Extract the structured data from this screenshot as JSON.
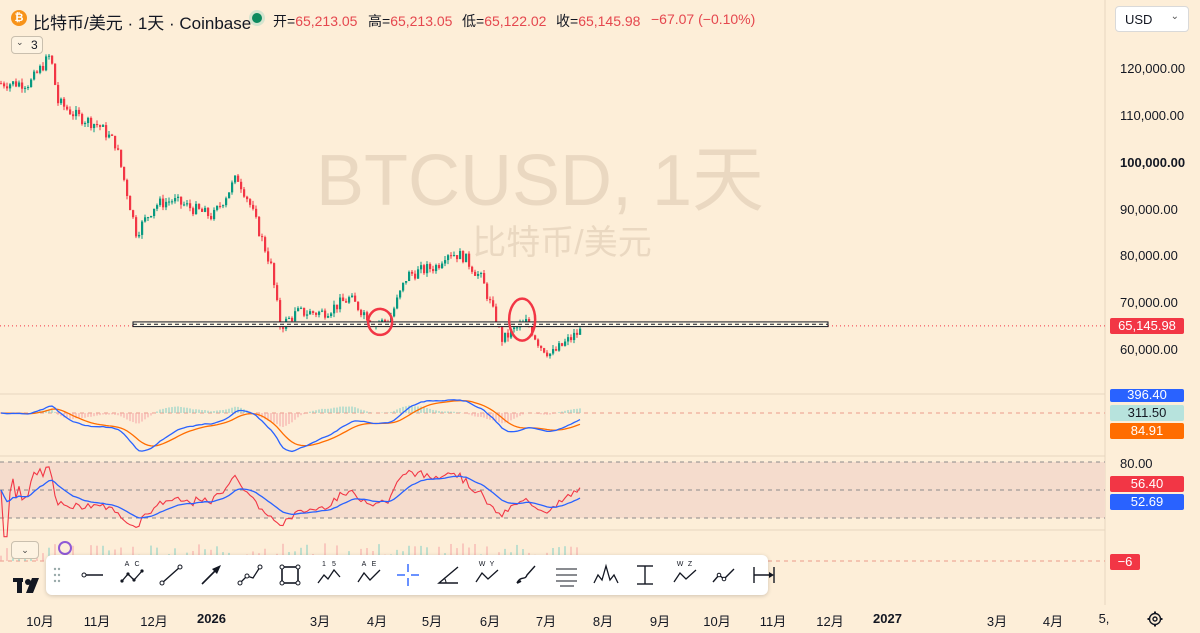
{
  "header": {
    "coin_glyph": "₿",
    "symbol_title": "比特币/美元 · 1天 · Coinbase",
    "ohlc": [
      {
        "label": "开=",
        "value": "65,213.05"
      },
      {
        "label": "高=",
        "value": "65,213.05"
      },
      {
        "label": "低=",
        "value": "65,122.02"
      },
      {
        "label": "收=",
        "value": "65,145.98"
      }
    ],
    "change": "−67.07 (−0.10%)",
    "currency": "USD",
    "indicator_count": "3"
  },
  "watermark": {
    "line1": "BTCUSD, 1天",
    "line2": "比特币/美元"
  },
  "colors": {
    "background": "#fdeed8",
    "up": "#089981",
    "down": "#f23645",
    "macd_line": "#2962ff",
    "signal_line": "#ff6d00",
    "rsi_line": "#f23645",
    "rsi_ma": "#2962ff",
    "price_tag": "#f23645"
  },
  "price_axis": [
    "120,000.00",
    "110,000.00",
    "100,000.00",
    "90,000.00",
    "80,000.00",
    "70,000.00",
    "60,000.00"
  ],
  "macd_axis": {
    "top": "396.40",
    "hist": "311.50",
    "signal": "84.91"
  },
  "rsi_axis": {
    "upper": "80.00",
    "rsi": "56.40",
    "ma": "52.69"
  },
  "volume_axis": {
    "value": "−6"
  },
  "current_price": "65,145.98",
  "time_axis": [
    "10月",
    "11月",
    "12月",
    "2026",
    "3月",
    "4月",
    "5月",
    "6月",
    "7月",
    "8月",
    "9月",
    "10月",
    "11月",
    "12月",
    "2027",
    "3月",
    "4月",
    "5,"
  ],
  "toolbar_tools": [
    {
      "name": "horizontal-ray-tool",
      "glyph": ""
    },
    {
      "name": "abc-pattern-tool",
      "glyph": "A C"
    },
    {
      "name": "trend-line-tool",
      "glyph": ""
    },
    {
      "name": "arrow-tool",
      "glyph": ""
    },
    {
      "name": "path-tool",
      "glyph": ""
    },
    {
      "name": "rectangle-tool",
      "glyph": ""
    },
    {
      "name": "elliott-wave-tool",
      "glyph": "1 5"
    },
    {
      "name": "abcd-pattern-tool",
      "glyph": "A E"
    },
    {
      "name": "crosshair-tool",
      "glyph": ""
    },
    {
      "name": "angle-tool",
      "glyph": ""
    },
    {
      "name": "wxy-pattern-tool",
      "glyph": "W Y"
    },
    {
      "name": "brush-tool",
      "glyph": ""
    },
    {
      "name": "fib-channel-tool",
      "glyph": ""
    },
    {
      "name": "head-shoulders-tool",
      "glyph": ""
    },
    {
      "name": "anchored-tool",
      "glyph": ""
    },
    {
      "name": "wxyz-pattern-tool",
      "glyph": "W Z"
    },
    {
      "name": "forecast-tool",
      "glyph": ""
    },
    {
      "name": "date-range-tool",
      "glyph": ""
    }
  ],
  "chart_data": {
    "type": "candlestick",
    "title": "BTCUSD, 1天",
    "x": [
      "2025-09-25",
      "2025-10-06",
      "2025-10-10",
      "2025-10-20",
      "2025-11-01",
      "2025-11-10",
      "2025-11-21",
      "2025-12-01",
      "2025-12-10",
      "2026-01-01",
      "2026-01-14",
      "2026-01-20",
      "2026-02-01",
      "2026-02-06",
      "2026-02-15",
      "2026-03-01",
      "2026-03-15",
      "2026-03-28",
      "2026-04-05",
      "2026-04-15",
      "2026-05-01",
      "2026-05-06",
      "2026-05-15",
      "2026-05-25",
      "2026-06-05",
      "2026-06-10",
      "2026-06-18",
      "2026-06-25",
      "2026-07-01",
      "2026-07-10",
      "2026-07-20"
    ],
    "close": [
      117000,
      123000,
      113000,
      110000,
      108000,
      104000,
      85000,
      91000,
      92000,
      88500,
      97000,
      92000,
      78000,
      65000,
      68000,
      68000,
      71000,
      66000,
      66000,
      76000,
      78000,
      81000,
      80000,
      75000,
      62000,
      64000,
      66000,
      61000,
      59000,
      62000,
      65146
    ],
    "ylim": [
      55000,
      125000
    ],
    "annotations": [
      {
        "type": "horizontal-zone",
        "y": [
          65000,
          66000
        ]
      },
      {
        "type": "circle",
        "x": "2026-04-01",
        "y": 66000
      },
      {
        "type": "circle",
        "x": "2026-06-16",
        "y": 66500
      }
    ],
    "indicators": [
      {
        "name": "MACD",
        "values_shown": [
          "396.40",
          "311.50",
          "84.91"
        ]
      },
      {
        "name": "RSI",
        "levels": [
          80,
          50,
          20
        ],
        "values_shown": [
          "56.40",
          "52.69"
        ]
      },
      {
        "name": "Volume",
        "values_shown": [
          "−6"
        ]
      }
    ]
  }
}
